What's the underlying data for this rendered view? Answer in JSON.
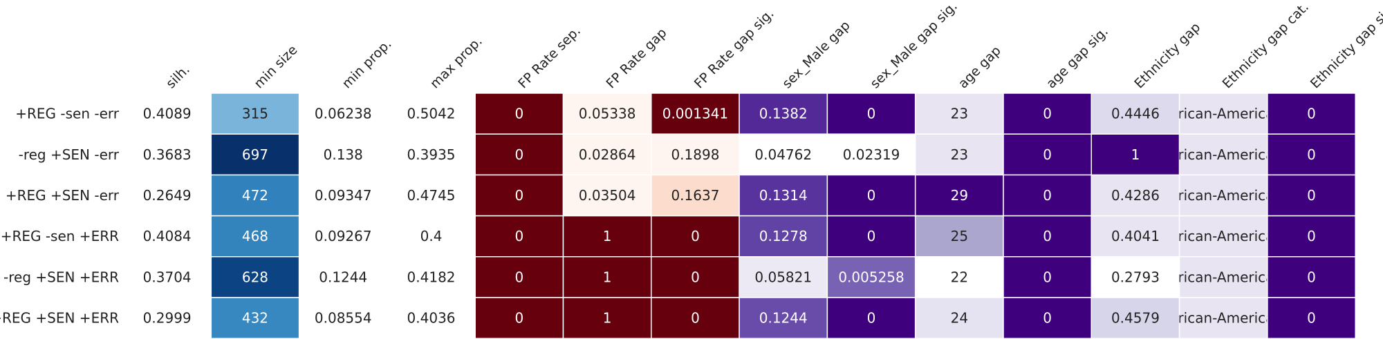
{
  "chart_data": {
    "type": "heatmap",
    "title": "",
    "columns": [
      {
        "label": "silh.",
        "colormap": "none"
      },
      {
        "label": "min size",
        "colormap": "blues"
      },
      {
        "label": "min prop.",
        "colormap": "none"
      },
      {
        "label": "max prop.",
        "colormap": "none"
      },
      {
        "label": "FP Rate sep.",
        "colormap": "reds"
      },
      {
        "label": "FP Rate gap",
        "colormap": "reds"
      },
      {
        "label": "FP Rate gap sig.",
        "colormap": "reds"
      },
      {
        "label": "sex_Male gap",
        "colormap": "purples"
      },
      {
        "label": "sex_Male gap sig.",
        "colormap": "purples"
      },
      {
        "label": "age gap",
        "colormap": "purples"
      },
      {
        "label": "age gap sig.",
        "colormap": "purples"
      },
      {
        "label": "Ethnicity gap",
        "colormap": "purples"
      },
      {
        "label": "Ethnicity gap cat.",
        "colormap": "purples"
      },
      {
        "label": "Ethnicity gap sig.",
        "colormap": "purples"
      }
    ],
    "rows": [
      {
        "label": "+REG -sen -err",
        "values": [
          "0.4089",
          "315",
          "0.06238",
          "0.5042",
          "0",
          "0.05338",
          "0.001341",
          "0.1382",
          "0",
          "23",
          "0",
          "0.4446",
          "African-American",
          "0"
        ],
        "levels": [
          null,
          0.3,
          null,
          null,
          1.0,
          0.0,
          1.0,
          0.78,
          1.0,
          0.12,
          1.0,
          0.2,
          0.12,
          1.0
        ]
      },
      {
        "label": "-reg +SEN -err",
        "values": [
          "0.3683",
          "697",
          "0.138",
          "0.3935",
          "0",
          "0.02864",
          "0.1898",
          "0.04762",
          "0.02319",
          "23",
          "0",
          "1",
          "African-American",
          "0"
        ],
        "levels": [
          null,
          1.0,
          null,
          null,
          1.0,
          0.0,
          0.0,
          0.0,
          0.0,
          0.12,
          1.0,
          1.0,
          0.12,
          1.0
        ]
      },
      {
        "label": "+REG +SEN -err",
        "values": [
          "0.2649",
          "472",
          "0.09347",
          "0.4745",
          "0",
          "0.03504",
          "0.1637",
          "0.1314",
          "0",
          "29",
          "0",
          "0.4286",
          "African-American",
          "0"
        ],
        "levels": [
          null,
          0.58,
          null,
          null,
          1.0,
          0.0,
          0.14,
          0.72,
          1.0,
          1.0,
          1.0,
          0.12,
          0.12,
          1.0
        ]
      },
      {
        "label": "+REG -sen +ERR",
        "values": [
          "0.4084",
          "468",
          "0.09267",
          "0.4",
          "0",
          "1",
          "0",
          "0.1278",
          "0",
          "25",
          "0",
          "0.4041",
          "African-American",
          "0"
        ],
        "levels": [
          null,
          0.57,
          null,
          null,
          1.0,
          1.0,
          1.0,
          0.68,
          1.0,
          0.4,
          1.0,
          0.12,
          0.12,
          1.0
        ]
      },
      {
        "label": "-reg +SEN +ERR",
        "values": [
          "0.3704",
          "628",
          "0.1244",
          "0.4182",
          "0",
          "1",
          "0",
          "0.05821",
          "0.005258",
          "22",
          "0",
          "0.2793",
          "African-American",
          "0"
        ],
        "levels": [
          null,
          0.9,
          null,
          null,
          1.0,
          1.0,
          1.0,
          0.1,
          0.62,
          0.0,
          1.0,
          0.0,
          0.12,
          1.0
        ]
      },
      {
        "label": "+REG +SEN +ERR",
        "values": [
          "0.2999",
          "432",
          "0.08554",
          "0.4036",
          "0",
          "1",
          "0",
          "0.1244",
          "0",
          "24",
          "0",
          "0.4579",
          "African-American",
          "0"
        ],
        "levels": [
          null,
          0.55,
          null,
          null,
          1.0,
          1.0,
          1.0,
          0.66,
          1.0,
          0.14,
          1.0,
          0.22,
          0.12,
          1.0
        ]
      }
    ],
    "grid": false,
    "legend": "none"
  }
}
